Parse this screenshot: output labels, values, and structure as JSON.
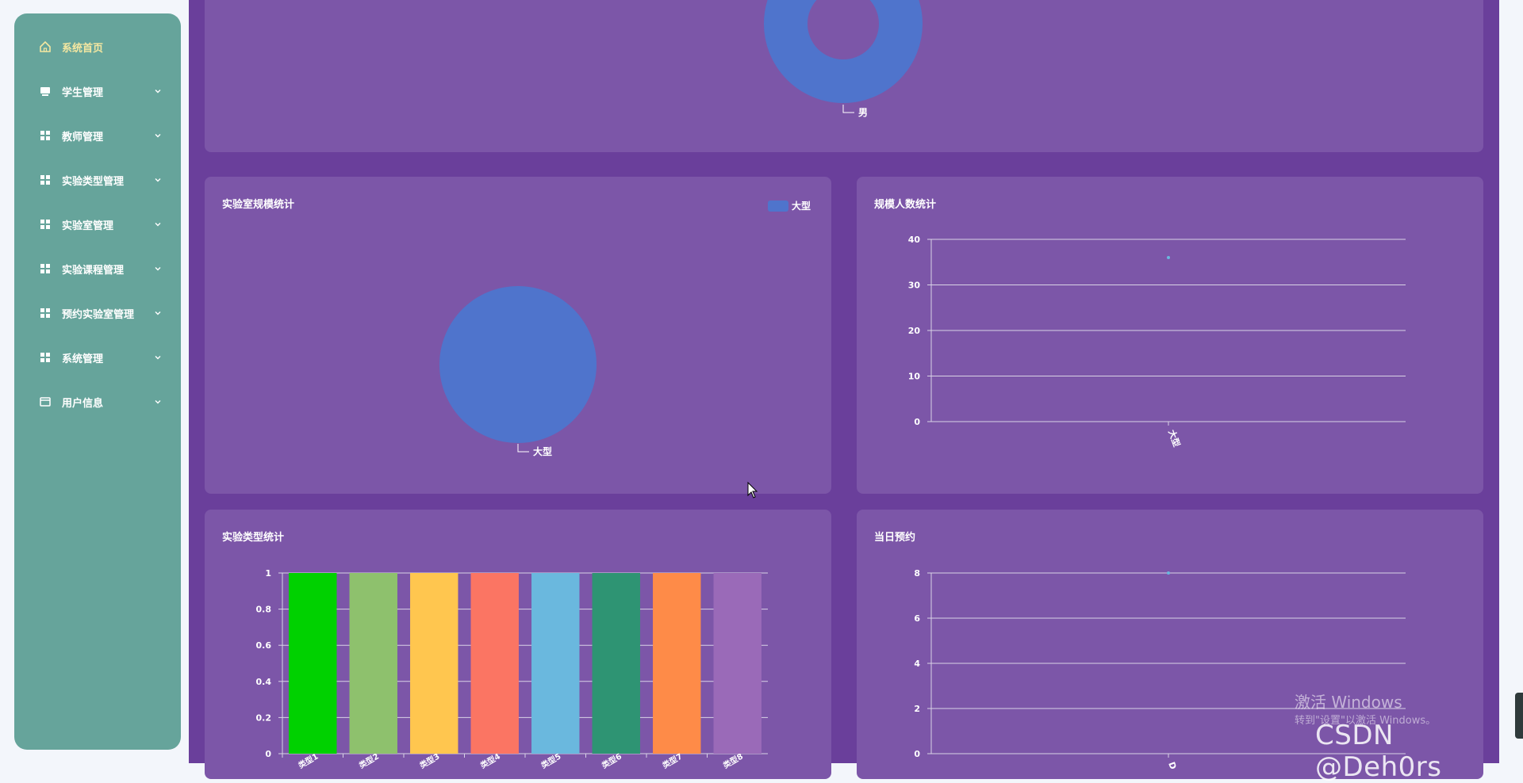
{
  "sidebar": {
    "items": [
      {
        "label": "系统首页",
        "icon": "home-icon",
        "active": true,
        "expandable": false
      },
      {
        "label": "学生管理",
        "icon": "monitor-icon",
        "active": false,
        "expandable": true
      },
      {
        "label": "教师管理",
        "icon": "grid-icon",
        "active": false,
        "expandable": true
      },
      {
        "label": "实验类型管理",
        "icon": "grid-icon",
        "active": false,
        "expandable": true
      },
      {
        "label": "实验室管理",
        "icon": "grid-icon",
        "active": false,
        "expandable": true
      },
      {
        "label": "实验课程管理",
        "icon": "grid-icon",
        "active": false,
        "expandable": true
      },
      {
        "label": "预约实验室管理",
        "icon": "grid-icon",
        "active": false,
        "expandable": true
      },
      {
        "label": "系统管理",
        "icon": "grid-icon",
        "active": false,
        "expandable": true
      },
      {
        "label": "用户信息",
        "icon": "card-icon",
        "active": false,
        "expandable": true
      }
    ],
    "colors": {
      "background": "#66a49b",
      "active_text": "#f4e7a1"
    }
  },
  "colors": {
    "main_bg": "#6a3f9b",
    "card_bg": "#7c56a8",
    "pie_blue": "#4f74cc"
  },
  "chart_data": [
    {
      "type": "pie",
      "variant": "donut",
      "title": "",
      "slices": [
        {
          "name": "男",
          "value": 1
        }
      ],
      "colors": [
        "#4f74cc"
      ]
    },
    {
      "type": "pie",
      "title": "实验室规模统计",
      "legend": {
        "position": "top-right",
        "entries": [
          "大型"
        ]
      },
      "slices": [
        {
          "name": "大型",
          "value": 1
        }
      ],
      "colors": [
        "#4f74cc"
      ]
    },
    {
      "type": "line",
      "title": "规模人数统计",
      "categories": [
        "大型"
      ],
      "values": [
        36
      ],
      "ylim": [
        0,
        40
      ],
      "yticks": [
        0,
        10,
        20,
        30,
        40
      ],
      "grid": true
    },
    {
      "type": "bar",
      "title": "实验类型统计",
      "categories": [
        "类型1",
        "类型2",
        "类型3",
        "类型4",
        "类型5",
        "类型6",
        "类型7",
        "类型8"
      ],
      "values": [
        1,
        1,
        1,
        1,
        1,
        1,
        1,
        1
      ],
      "colors": [
        "#00d100",
        "#8ec16d",
        "#ffc64f",
        "#fb7563",
        "#6ab8de",
        "#2e9473",
        "#fe8b48",
        "#9a6ab8"
      ],
      "ylim": [
        0,
        1
      ],
      "yticks": [
        "0",
        "0.2",
        "0.4",
        "0.6",
        "0.8",
        "1"
      ],
      "grid": true
    },
    {
      "type": "line",
      "title": "当日预约",
      "categories": [
        "D"
      ],
      "values": [
        8
      ],
      "ylim": [
        0,
        8
      ],
      "yticks": [
        0,
        2,
        4,
        6,
        8
      ],
      "grid": true
    }
  ],
  "overlay": {
    "activation_title": "激活 Windows",
    "activation_sub": "转到\"设置\"以激活 Windows。",
    "credit": "CSDN @Deh0rs"
  }
}
